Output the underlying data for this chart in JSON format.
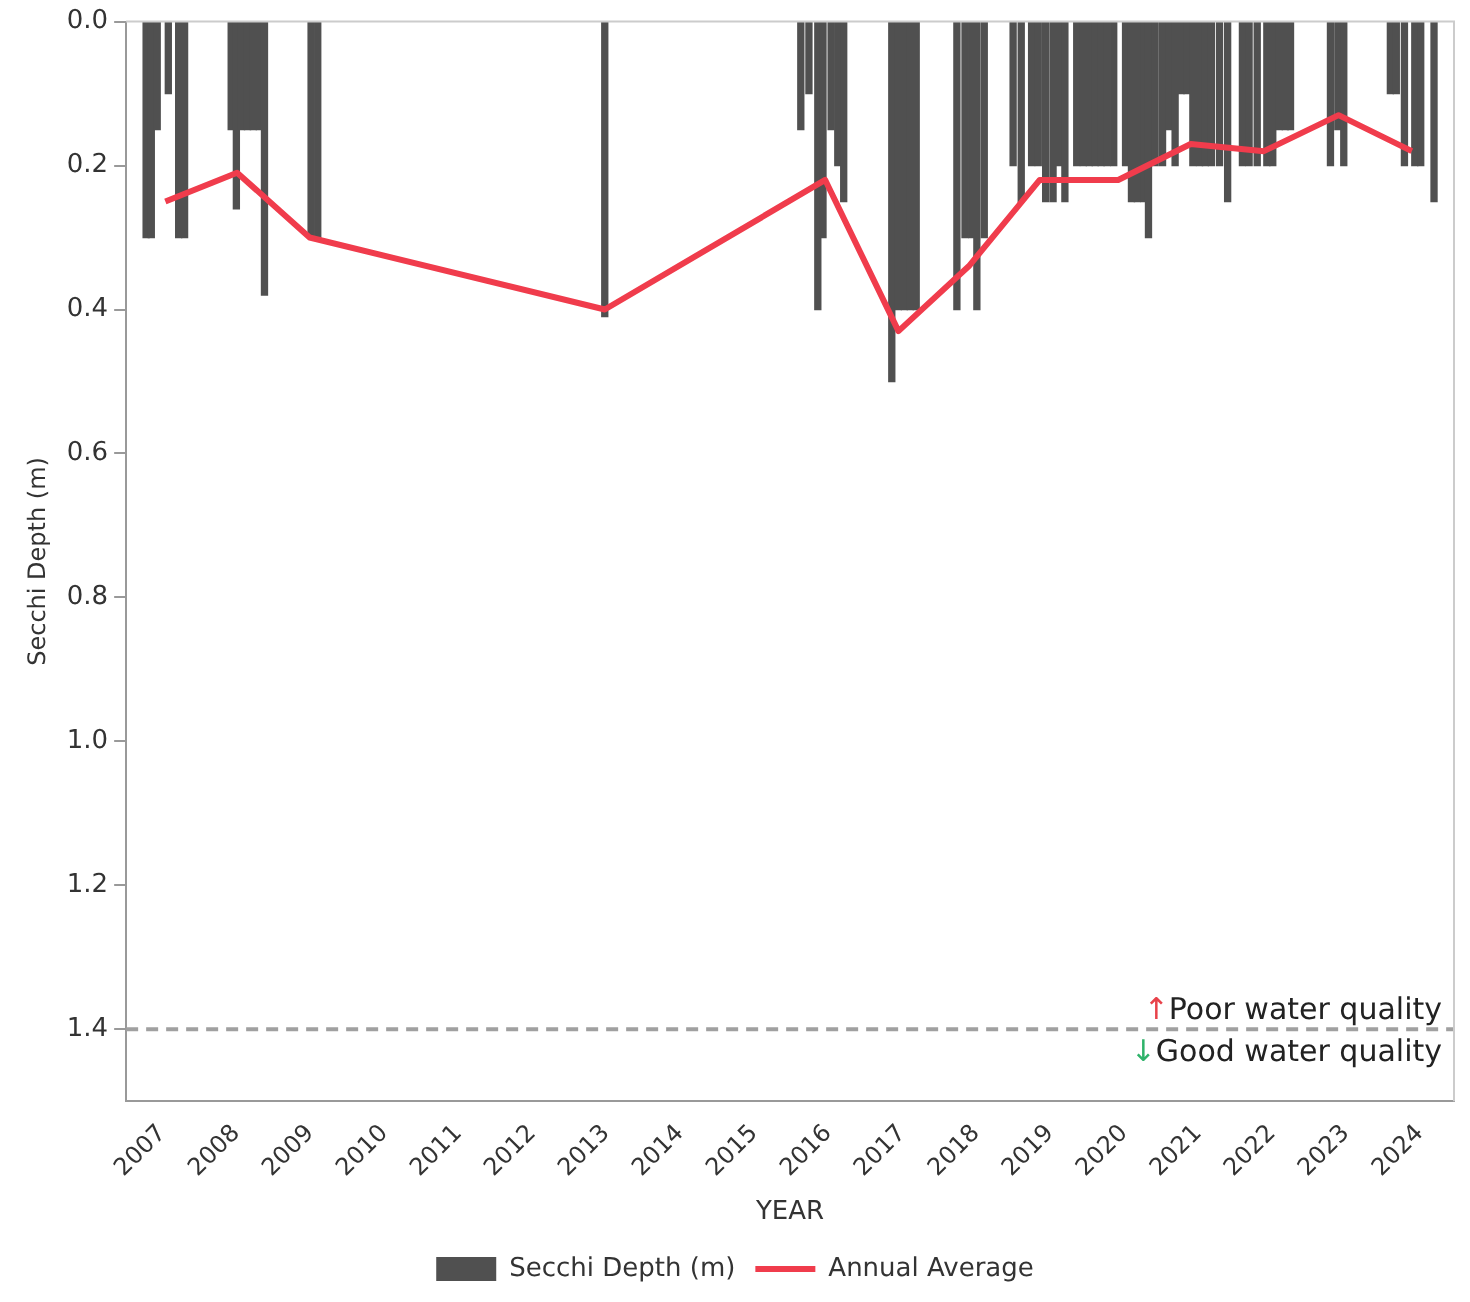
{
  "chart_data": {
    "type": "bar",
    "xlabel": "YEAR",
    "ylabel": "Secchi Depth (m)",
    "xlim": [
      2006.51,
      2024.46
    ],
    "xticks": [
      2007,
      2008,
      2009,
      2010,
      2011,
      2012,
      2013,
      2014,
      2015,
      2016,
      2017,
      2018,
      2019,
      2020,
      2021,
      2022,
      2023,
      2024
    ],
    "ylim": [
      1.5,
      0
    ],
    "yticks": [
      {
        "value": 0,
        "label": "0.0"
      },
      0.2,
      0.4,
      0.6,
      0.8,
      {
        "value": 1,
        "label": "1.0"
      },
      1.2,
      1.4
    ],
    "grid": false,
    "legend": "bottom",
    "series": [
      {
        "name": "Secchi Depth (m)",
        "color": "#505050",
        "x": [
          2006.78,
          2006.85,
          2006.93,
          2007.08,
          2007.22,
          2007.3,
          2007.93,
          2008.0,
          2008.07,
          2008.15,
          2008.23,
          2008.31,
          2008.38,
          2009.01,
          2009.1,
          2012.98,
          2015.63,
          2015.74,
          2015.86,
          2015.93,
          2016.04,
          2016.13,
          2016.21,
          2016.86,
          2016.95,
          2017.03,
          2017.11,
          2017.19,
          2017.74,
          2017.85,
          2017.94,
          2018.01,
          2018.11,
          2018.5,
          2018.61,
          2018.75,
          2018.84,
          2018.94,
          2019.04,
          2019.12,
          2019.2,
          2019.36,
          2019.45,
          2019.53,
          2019.61,
          2019.69,
          2019.77,
          2019.86,
          2020.02,
          2020.1,
          2020.18,
          2020.27,
          2020.33,
          2020.42,
          2020.52,
          2020.61,
          2020.69,
          2020.77,
          2020.85,
          2020.93,
          2021.02,
          2021.1,
          2021.18,
          2021.29,
          2021.4,
          2021.6,
          2021.69,
          2021.8,
          2021.93,
          2022.01,
          2022.1,
          2022.18,
          2022.25,
          2022.79,
          2022.89,
          2022.97,
          2023.6,
          2023.68,
          2023.79,
          2023.93,
          2024.01,
          2024.19
        ],
        "values": [
          0.3,
          0.3,
          0.15,
          0.1,
          0.3,
          0.3,
          0.15,
          0.26,
          0.15,
          0.15,
          0.15,
          0.15,
          0.38,
          0.3,
          0.3,
          0.41,
          0.15,
          0.1,
          0.4,
          0.3,
          0.15,
          0.2,
          0.25,
          0.5,
          0.4,
          0.4,
          0.4,
          0.4,
          0.4,
          0.3,
          0.3,
          0.4,
          0.3,
          0.2,
          0.25,
          0.2,
          0.2,
          0.25,
          0.25,
          0.2,
          0.25,
          0.2,
          0.2,
          0.2,
          0.2,
          0.2,
          0.2,
          0.2,
          0.2,
          0.25,
          0.25,
          0.25,
          0.3,
          0.2,
          0.2,
          0.15,
          0.2,
          0.1,
          0.1,
          0.2,
          0.2,
          0.2,
          0.2,
          0.2,
          0.25,
          0.2,
          0.2,
          0.2,
          0.2,
          0.2,
          0.15,
          0.15,
          0.15,
          0.2,
          0.15,
          0.2,
          0.1,
          0.1,
          0.2,
          0.2,
          0.2,
          0.25
        ]
      },
      {
        "name": "Annual Average",
        "type": "line",
        "color": "#f03c4c",
        "marker": "none",
        "x": [
          2007.04,
          2008.01,
          2008.99,
          2012.98,
          2015.96,
          2016.95,
          2017.9,
          2018.86,
          2019.92,
          2020.9,
          2021.89,
          2022.9,
          2023.89
        ],
        "values": [
          0.25,
          0.21,
          0.3,
          0.4,
          0.22,
          0.43,
          0.34,
          0.22,
          0.22,
          0.17,
          0.18,
          0.13,
          0.18
        ]
      }
    ],
    "ref_lines": [
      {
        "axis": "y",
        "value": 1.4,
        "color": "#a0a0a0",
        "line_style": "dashed"
      }
    ],
    "annotations": [
      {
        "text": "↑Poor water quality",
        "y": 1.4
      },
      {
        "text": "↓Good water quality",
        "y": 1.4
      }
    ]
  }
}
